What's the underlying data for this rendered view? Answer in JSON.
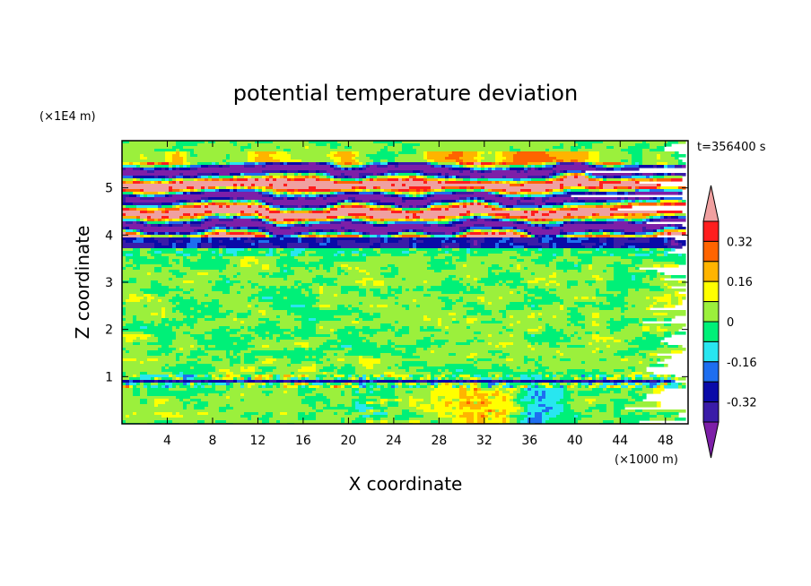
{
  "chart_data": {
    "type": "heatmap",
    "title": "potential temperature deviation",
    "xlabel": "X coordinate",
    "ylabel": "Z coordinate",
    "x_unit": "(×1000 m)",
    "y_unit": "(×1E4 m)",
    "time_label": "t=356400 s",
    "xlim": [
      0,
      50
    ],
    "ylim": [
      0,
      6
    ],
    "x_ticks": [
      "4",
      "8",
      "12",
      "16",
      "20",
      "24",
      "28",
      "32",
      "36",
      "40",
      "44",
      "48"
    ],
    "y_ticks": [
      "1",
      "2",
      "3",
      "4",
      "5"
    ],
    "colorbar": {
      "levels": [
        -0.4,
        -0.32,
        -0.24,
        -0.16,
        -0.08,
        0,
        0.08,
        0.16,
        0.24,
        0.32,
        0.4
      ],
      "colors": [
        "#7d1fa8",
        "#3a1ca8",
        "#0a0aa8",
        "#1e6ef0",
        "#28e6f0",
        "#00f078",
        "#9bf03c",
        "#ffff00",
        "#ffb400",
        "#ff6400",
        "#ff1e1e",
        "#f0a0a0"
      ],
      "tick_labels": [
        "0.32",
        "0.16",
        "0",
        "-0.16",
        "-0.32"
      ],
      "tick_values": [
        0.32,
        0.16,
        0,
        -0.16,
        -0.32
      ]
    },
    "grid": false,
    "legend": "right"
  }
}
